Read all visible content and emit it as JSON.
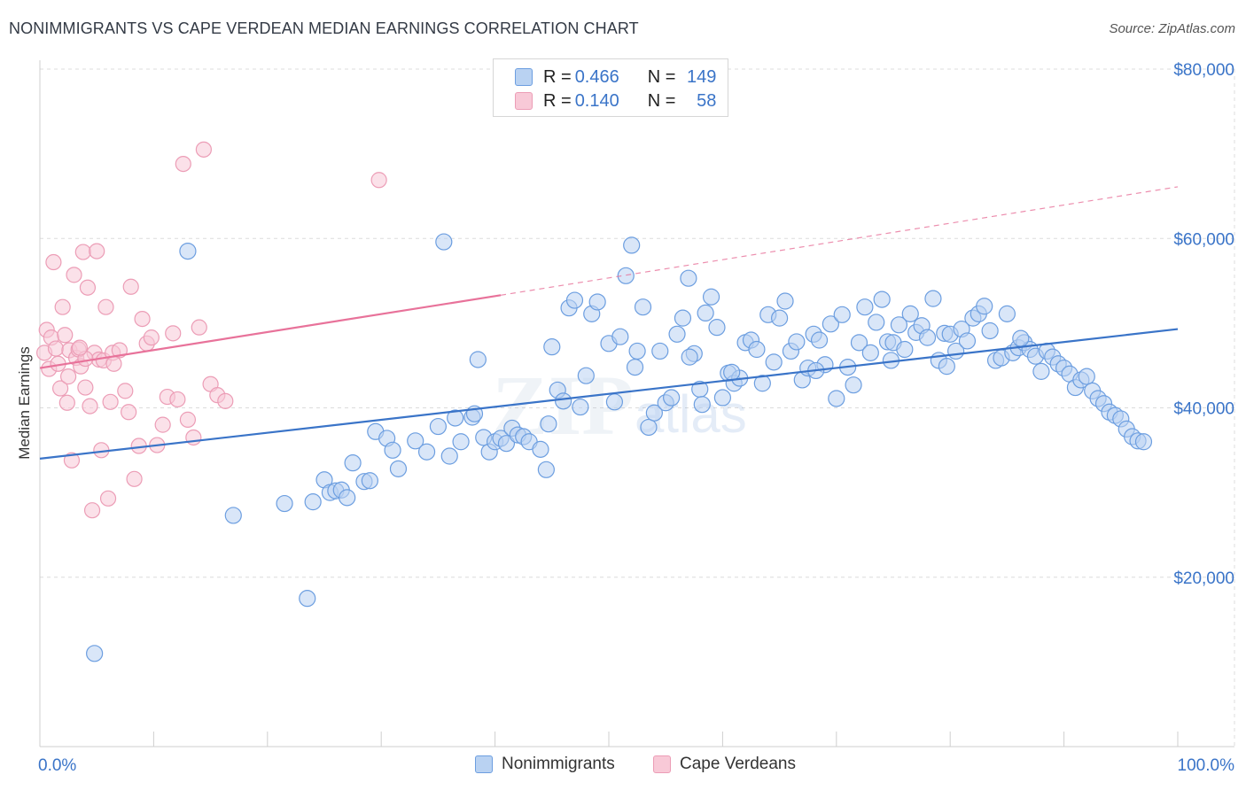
{
  "title": "NONIMMIGRANTS VS CAPE VERDEAN MEDIAN EARNINGS CORRELATION CHART",
  "source": "Source: ZipAtlas.com",
  "colors": {
    "blue": "#3a74c8",
    "blue_fill": "#b9d2f2",
    "blue_stroke": "#6c9ee0",
    "pink": "#e8729a",
    "pink_fill": "#f8c9d7",
    "pink_stroke": "#ec9db6",
    "grid": "#dcdcdc"
  },
  "legend": {
    "rows": [
      {
        "r_label": "R = ",
        "r_value": "0.466",
        "n_label": "N = ",
        "n_value": "149"
      },
      {
        "r_label": "R = ",
        "r_value": "0.140",
        "n_label": "N = ",
        "n_value": "58"
      }
    ]
  },
  "bottom_legend": [
    "Nonimmigrants",
    "Cape Verdeans"
  ],
  "chart_data": {
    "type": "scatter",
    "title": "NONIMMIGRANTS VS CAPE VERDEAN MEDIAN EARNINGS CORRELATION CHART",
    "xlabel": "",
    "ylabel": "Median Earnings",
    "x_tick_labels": [
      "0.0%",
      "100.0%"
    ],
    "y_tick_labels": [
      "$20,000",
      "$40,000",
      "$60,000",
      "$80,000"
    ],
    "y_ticks": [
      20000,
      40000,
      60000,
      80000
    ],
    "xlim": [
      0,
      100
    ],
    "ylim": [
      0,
      82000
    ],
    "grid": true,
    "legend_position": "top-center",
    "series": [
      {
        "name": "Nonimmigrants",
        "R": 0.466,
        "N": 149,
        "trend": {
          "x": [
            0,
            100
          ],
          "y": [
            34000,
            49300
          ]
        },
        "points": [
          [
            4.8,
            11000
          ],
          [
            13,
            58500
          ],
          [
            17,
            27300
          ],
          [
            21.5,
            28700
          ],
          [
            23.5,
            17500
          ],
          [
            24,
            28900
          ],
          [
            25,
            31500
          ],
          [
            25.5,
            30000
          ],
          [
            26,
            30200
          ],
          [
            26.5,
            30300
          ],
          [
            27,
            29400
          ],
          [
            27.5,
            33500
          ],
          [
            28.5,
            31300
          ],
          [
            29,
            31400
          ],
          [
            29.5,
            37200
          ],
          [
            30.5,
            36400
          ],
          [
            31,
            35000
          ],
          [
            31.5,
            32800
          ],
          [
            33,
            36100
          ],
          [
            34,
            34800
          ],
          [
            35,
            37800
          ],
          [
            35.5,
            59600
          ],
          [
            36,
            34300
          ],
          [
            36.5,
            38800
          ],
          [
            37,
            36000
          ],
          [
            38,
            38900
          ],
          [
            38.5,
            45700
          ],
          [
            39,
            36500
          ],
          [
            39.5,
            34800
          ],
          [
            40,
            36000
          ],
          [
            40.5,
            36400
          ],
          [
            41,
            35800
          ],
          [
            41.5,
            37600
          ],
          [
            42,
            36800
          ],
          [
            42.5,
            36600
          ],
          [
            43,
            36000
          ],
          [
            44,
            35100
          ],
          [
            44.5,
            32700
          ],
          [
            45,
            47200
          ],
          [
            45.5,
            42100
          ],
          [
            46,
            40800
          ],
          [
            46.5,
            51800
          ],
          [
            47,
            52700
          ],
          [
            47.5,
            40100
          ],
          [
            48,
            43800
          ],
          [
            48.5,
            51100
          ],
          [
            49,
            52500
          ],
          [
            50,
            47600
          ],
          [
            50.5,
            40700
          ],
          [
            51,
            48400
          ],
          [
            51.5,
            55600
          ],
          [
            52,
            59200
          ],
          [
            52.5,
            46700
          ],
          [
            53,
            51900
          ],
          [
            53.5,
            37700
          ],
          [
            54,
            39400
          ],
          [
            54.5,
            46700
          ],
          [
            55,
            40600
          ],
          [
            55.5,
            41200
          ],
          [
            56,
            48700
          ],
          [
            56.5,
            50600
          ],
          [
            57,
            55300
          ],
          [
            57.5,
            46400
          ],
          [
            58,
            42200
          ],
          [
            58.5,
            51200
          ],
          [
            59,
            53100
          ],
          [
            59.5,
            49500
          ],
          [
            60,
            41200
          ],
          [
            60.5,
            44100
          ],
          [
            61,
            42900
          ],
          [
            61.5,
            43500
          ],
          [
            62,
            47700
          ],
          [
            62.5,
            48000
          ],
          [
            63,
            46900
          ],
          [
            63.5,
            42900
          ],
          [
            64,
            51000
          ],
          [
            64.5,
            45400
          ],
          [
            65,
            50600
          ],
          [
            65.5,
            52600
          ],
          [
            66,
            46700
          ],
          [
            66.5,
            47800
          ],
          [
            67,
            43300
          ],
          [
            67.5,
            44700
          ],
          [
            68,
            48700
          ],
          [
            68.5,
            48000
          ],
          [
            69,
            45100
          ],
          [
            69.5,
            49900
          ],
          [
            70,
            41100
          ],
          [
            70.5,
            51000
          ],
          [
            71,
            44800
          ],
          [
            71.5,
            42700
          ],
          [
            72,
            47700
          ],
          [
            72.5,
            51900
          ],
          [
            73,
            46500
          ],
          [
            73.5,
            50100
          ],
          [
            74,
            52800
          ],
          [
            74.5,
            47800
          ],
          [
            75,
            47700
          ],
          [
            75.5,
            49800
          ],
          [
            76,
            46900
          ],
          [
            76.5,
            51100
          ],
          [
            77,
            48900
          ],
          [
            77.5,
            49700
          ],
          [
            78,
            48300
          ],
          [
            78.5,
            52900
          ],
          [
            79,
            45600
          ],
          [
            79.5,
            48800
          ],
          [
            80,
            48700
          ],
          [
            80.5,
            46700
          ],
          [
            81,
            49300
          ],
          [
            81.5,
            47900
          ],
          [
            82,
            50600
          ],
          [
            82.5,
            51100
          ],
          [
            83,
            52000
          ],
          [
            83.5,
            49100
          ],
          [
            84,
            45600
          ],
          [
            84.5,
            45900
          ],
          [
            85,
            51100
          ],
          [
            85.5,
            46500
          ],
          [
            86,
            47100
          ],
          [
            86.5,
            47700
          ],
          [
            87,
            46900
          ],
          [
            87.5,
            46100
          ],
          [
            88,
            44300
          ],
          [
            88.5,
            46700
          ],
          [
            89,
            46000
          ],
          [
            89.5,
            45200
          ],
          [
            90,
            44700
          ],
          [
            90.5,
            44000
          ],
          [
            91,
            42400
          ],
          [
            91.5,
            43300
          ],
          [
            92,
            43700
          ],
          [
            92.5,
            42000
          ],
          [
            93,
            41100
          ],
          [
            93.5,
            40500
          ],
          [
            94,
            39500
          ],
          [
            94.5,
            39100
          ],
          [
            95,
            38700
          ],
          [
            95.5,
            37500
          ],
          [
            96,
            36600
          ],
          [
            96.5,
            36100
          ],
          [
            97,
            36000
          ],
          [
            60.8,
            44200
          ],
          [
            58.2,
            40400
          ],
          [
            52.3,
            44800
          ],
          [
            57.1,
            46000
          ],
          [
            68.2,
            44400
          ],
          [
            74.8,
            45600
          ],
          [
            79.7,
            44900
          ],
          [
            86.2,
            48200
          ],
          [
            44.7,
            38100
          ],
          [
            38.2,
            39300
          ]
        ]
      },
      {
        "name": "Cape Verdeans",
        "R": 0.14,
        "N": 58,
        "trend_solid": {
          "x": [
            0,
            40.5
          ],
          "y": [
            44700,
            53300
          ]
        },
        "trend_dashed": {
          "x": [
            40.5,
            100
          ],
          "y": [
            53300,
            66100
          ]
        },
        "points": [
          [
            0.4,
            46500
          ],
          [
            0.6,
            49200
          ],
          [
            0.8,
            44600
          ],
          [
            1.0,
            48300
          ],
          [
            1.2,
            57200
          ],
          [
            1.4,
            47000
          ],
          [
            1.6,
            45200
          ],
          [
            1.8,
            42300
          ],
          [
            2.0,
            51900
          ],
          [
            2.2,
            48600
          ],
          [
            2.4,
            40600
          ],
          [
            2.6,
            46800
          ],
          [
            2.8,
            33800
          ],
          [
            3.0,
            55700
          ],
          [
            3.2,
            45900
          ],
          [
            3.4,
            46900
          ],
          [
            3.6,
            44900
          ],
          [
            3.8,
            58400
          ],
          [
            4.0,
            42400
          ],
          [
            4.2,
            54200
          ],
          [
            4.4,
            40200
          ],
          [
            4.6,
            27900
          ],
          [
            4.8,
            46500
          ],
          [
            5.0,
            58500
          ],
          [
            5.2,
            45700
          ],
          [
            5.4,
            35000
          ],
          [
            5.6,
            45600
          ],
          [
            5.8,
            51900
          ],
          [
            6.0,
            29300
          ],
          [
            6.2,
            40700
          ],
          [
            6.4,
            46500
          ],
          [
            7.0,
            46800
          ],
          [
            7.5,
            42000
          ],
          [
            8.0,
            54300
          ],
          [
            8.3,
            31600
          ],
          [
            8.7,
            35500
          ],
          [
            9.0,
            50500
          ],
          [
            9.4,
            47600
          ],
          [
            9.8,
            48300
          ],
          [
            10.3,
            35600
          ],
          [
            10.8,
            38000
          ],
          [
            11.2,
            41300
          ],
          [
            11.7,
            48800
          ],
          [
            12.1,
            41000
          ],
          [
            12.6,
            68800
          ],
          [
            13.0,
            38600
          ],
          [
            13.5,
            36500
          ],
          [
            14.0,
            49500
          ],
          [
            14.4,
            70500
          ],
          [
            15.0,
            42800
          ],
          [
            15.6,
            41500
          ],
          [
            16.3,
            40800
          ],
          [
            29.8,
            66900
          ],
          [
            4.0,
            45800
          ],
          [
            2.5,
            43700
          ],
          [
            6.5,
            45200
          ],
          [
            7.8,
            39500
          ],
          [
            3.5,
            47100
          ]
        ]
      }
    ]
  }
}
